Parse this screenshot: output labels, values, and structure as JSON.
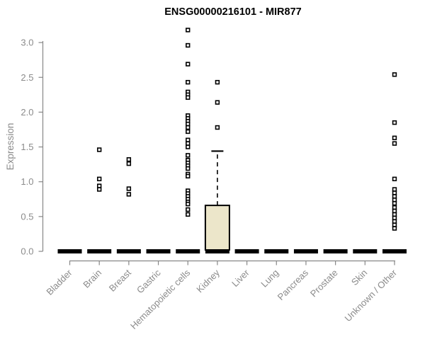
{
  "title": "ENSG00000216101 - MIR877",
  "chart_data": {
    "type": "box",
    "title": "ENSG00000216101 - MIR877",
    "xlabel": "",
    "ylabel": "Expression",
    "ylim": [
      0,
      3.2
    ],
    "yticks": [
      "0.0",
      "0.5",
      "1.0",
      "1.5",
      "2.0",
      "2.5",
      "3.0"
    ],
    "grid": false,
    "legend": "none",
    "categories": [
      "Bladder",
      "Brain",
      "Breast",
      "Gastric",
      "Hematopoietic cells",
      "Kidney",
      "Liver",
      "Lung",
      "Pancreas",
      "Prostate",
      "Skin",
      "Unknown / Other"
    ],
    "boxes": [
      {
        "category": "Bladder",
        "median": 0,
        "q1": 0,
        "q3": 0,
        "whisker_low": 0,
        "whisker_high": 0,
        "outliers": []
      },
      {
        "category": "Brain",
        "median": 0,
        "q1": 0,
        "q3": 0,
        "whisker_low": 0,
        "whisker_high": 0,
        "outliers": [
          1.46,
          1.04,
          0.94,
          0.89
        ]
      },
      {
        "category": "Breast",
        "median": 0,
        "q1": 0,
        "q3": 0,
        "whisker_low": 0,
        "whisker_high": 0,
        "outliers": [
          1.32,
          1.26,
          0.9,
          0.82
        ]
      },
      {
        "category": "Gastric",
        "median": 0,
        "q1": 0,
        "q3": 0,
        "whisker_low": 0,
        "whisker_high": 0,
        "outliers": []
      },
      {
        "category": "Hematopoietic cells",
        "median": 0,
        "q1": 0,
        "q3": 0,
        "whisker_low": 0,
        "whisker_high": 0,
        "outliers": [
          3.18,
          2.96,
          2.69,
          2.43,
          2.29,
          2.25,
          2.21,
          1.95,
          1.91,
          1.87,
          1.83,
          1.78,
          1.72,
          1.6,
          1.55,
          1.5,
          1.38,
          1.31,
          1.27,
          1.23,
          1.19,
          1.11,
          1.08,
          0.87,
          0.83,
          0.79,
          0.75,
          0.71,
          0.68,
          0.6,
          0.53
        ]
      },
      {
        "category": "Kidney",
        "median": 0,
        "q1": 0,
        "q3": 0.66,
        "whisker_low": 0,
        "whisker_high": 1.44,
        "outliers": [
          2.43,
          2.14,
          1.78
        ]
      },
      {
        "category": "Liver",
        "median": 0,
        "q1": 0,
        "q3": 0,
        "whisker_low": 0,
        "whisker_high": 0,
        "outliers": []
      },
      {
        "category": "Lung",
        "median": 0,
        "q1": 0,
        "q3": 0,
        "whisker_low": 0,
        "whisker_high": 0,
        "outliers": []
      },
      {
        "category": "Pancreas",
        "median": 0,
        "q1": 0,
        "q3": 0,
        "whisker_low": 0,
        "whisker_high": 0,
        "outliers": []
      },
      {
        "category": "Prostate",
        "median": 0,
        "q1": 0,
        "q3": 0,
        "whisker_low": 0,
        "whisker_high": 0,
        "outliers": []
      },
      {
        "category": "Skin",
        "median": 0,
        "q1": 0,
        "q3": 0,
        "whisker_low": 0,
        "whisker_high": 0,
        "outliers": []
      },
      {
        "category": "Unknown / Other",
        "median": 0,
        "q1": 0,
        "q3": 0,
        "whisker_low": 0,
        "whisker_high": 0,
        "outliers": [
          2.54,
          1.85,
          1.63,
          1.55,
          1.04,
          0.89,
          0.84,
          0.79,
          0.74,
          0.69,
          0.63,
          0.58,
          0.53,
          0.48,
          0.43,
          0.38,
          0.33
        ]
      }
    ],
    "colors": {
      "background": "#FFFFFF",
      "title": "#000000",
      "axis_line": "#878787",
      "tick_label": "#8B8B8B",
      "box_fill": "#ECE6CA",
      "box_border": "#000000",
      "collapsed_box": "#000000",
      "outlier_stroke": "#000000",
      "outlier_fill": "#FFFFFF"
    }
  }
}
